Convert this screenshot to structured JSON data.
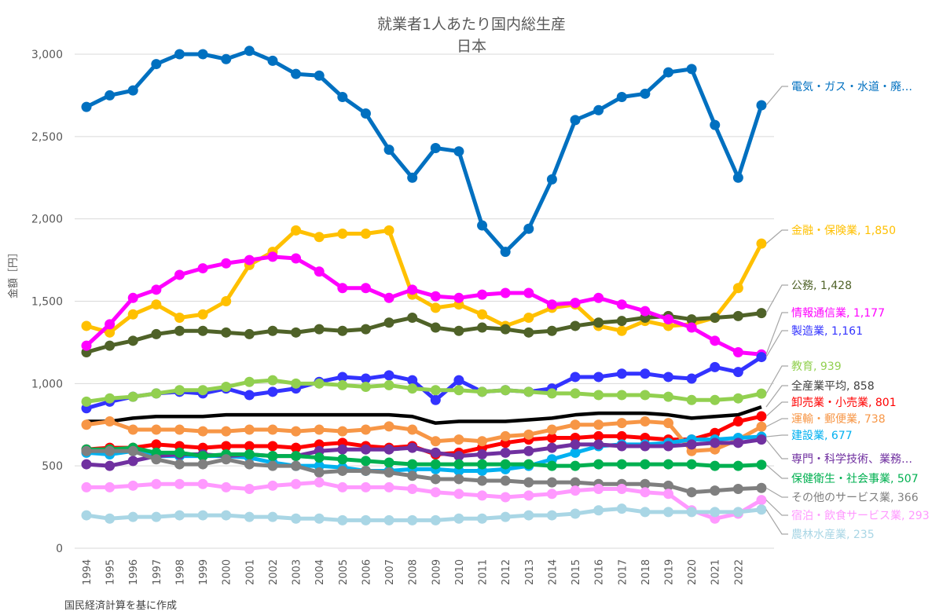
{
  "chart_data": {
    "type": "line",
    "title": "就業者1人あたり国内総生産",
    "subtitle": "日本",
    "xlabel": "",
    "ylabel": "金額［円］",
    "source_note": "国民経済計算を基に作成",
    "ylim": [
      0,
      3000
    ],
    "yticks": [
      "0",
      "500",
      "1,000",
      "1,500",
      "2,000",
      "2,500",
      "3,000"
    ],
    "ytick_values": [
      0,
      500,
      1000,
      1500,
      2000,
      2500,
      3000
    ],
    "x": [
      1994,
      1995,
      1996,
      1997,
      1998,
      1999,
      2000,
      2001,
      2002,
      2003,
      2004,
      2005,
      2006,
      2007,
      2008,
      2009,
      2010,
      2011,
      2012,
      2013,
      2014,
      2015,
      2016,
      2017,
      2018,
      2019,
      2020,
      2021,
      2022,
      2023
    ],
    "xtick_labels": [
      "1994",
      "1995",
      "1996",
      "1997",
      "1998",
      "1999",
      "2000",
      "2001",
      "2002",
      "2003",
      "2004",
      "2005",
      "2006",
      "2007",
      "2008",
      "2009",
      "2010",
      "2011",
      "2012",
      "2013",
      "2014",
      "2015",
      "2016",
      "2017",
      "2018",
      "2019",
      "2020",
      "2021",
      "2022"
    ],
    "grid": true,
    "legend": "end-of-line labels (right)",
    "series": [
      {
        "name": "電気・ガス・水道・廃棄物処理業",
        "label": "電気・ガス・水道・廃…",
        "color": "#0070c0",
        "markers": true,
        "values": [
          2680,
          2750,
          2780,
          2940,
          3000,
          3000,
          2970,
          3020,
          2960,
          2880,
          2870,
          2740,
          2640,
          2420,
          2250,
          2430,
          2410,
          1960,
          1800,
          1940,
          2240,
          2600,
          2660,
          2740,
          2760,
          2890,
          2910,
          2570,
          2250,
          2690
        ]
      },
      {
        "name": "金融・保険業",
        "label": "金融・保険業, 1,850",
        "color": "#ffc000",
        "markers": true,
        "values": [
          1350,
          1310,
          1420,
          1480,
          1400,
          1420,
          1500,
          1720,
          1800,
          1930,
          1890,
          1910,
          1910,
          1930,
          1540,
          1460,
          1480,
          1420,
          1350,
          1400,
          1460,
          1480,
          1350,
          1320,
          1380,
          1350,
          1360,
          1400,
          1580,
          1850
        ]
      },
      {
        "name": "公務",
        "label": "公務, 1,428",
        "color": "#4f6228",
        "markers": true,
        "values": [
          1190,
          1230,
          1260,
          1300,
          1320,
          1320,
          1310,
          1300,
          1320,
          1310,
          1330,
          1320,
          1330,
          1370,
          1400,
          1340,
          1320,
          1340,
          1330,
          1310,
          1320,
          1350,
          1370,
          1380,
          1400,
          1410,
          1390,
          1400,
          1410,
          1428
        ]
      },
      {
        "name": "情報通信業",
        "label": "情報通信業, 1,177",
        "color": "#ff00ff",
        "markers": true,
        "values": [
          1230,
          1360,
          1520,
          1570,
          1660,
          1700,
          1730,
          1750,
          1770,
          1760,
          1680,
          1580,
          1580,
          1520,
          1570,
          1530,
          1520,
          1540,
          1550,
          1550,
          1480,
          1490,
          1520,
          1480,
          1440,
          1390,
          1340,
          1260,
          1190,
          1177
        ]
      },
      {
        "name": "製造業",
        "label": "製造業, 1,161",
        "color": "#3333ff",
        "markers": true,
        "values": [
          850,
          890,
          920,
          940,
          950,
          940,
          970,
          930,
          950,
          970,
          1010,
          1040,
          1030,
          1050,
          1020,
          900,
          1020,
          950,
          960,
          950,
          970,
          1040,
          1040,
          1060,
          1060,
          1040,
          1030,
          1100,
          1070,
          1161
        ]
      },
      {
        "name": "教育",
        "label": "教育, 939",
        "color": "#92d050",
        "markers": true,
        "values": [
          890,
          910,
          920,
          940,
          960,
          960,
          980,
          1010,
          1020,
          1000,
          1000,
          990,
          980,
          990,
          970,
          960,
          960,
          950,
          960,
          950,
          940,
          940,
          930,
          930,
          930,
          920,
          900,
          900,
          910,
          939
        ]
      },
      {
        "name": "全産業平均",
        "label": "全産業平均, 858",
        "color": "#000000",
        "markers": false,
        "values": [
          770,
          770,
          790,
          800,
          800,
          800,
          810,
          810,
          810,
          810,
          810,
          810,
          810,
          810,
          800,
          760,
          770,
          770,
          770,
          780,
          790,
          810,
          820,
          820,
          820,
          810,
          790,
          800,
          810,
          858
        ]
      },
      {
        "name": "卸売業・小売業",
        "label": "卸売業・小売業, 801",
        "color": "#ff0000",
        "markers": true,
        "values": [
          600,
          610,
          610,
          630,
          620,
          610,
          620,
          620,
          620,
          610,
          630,
          640,
          620,
          610,
          620,
          570,
          580,
          610,
          640,
          660,
          670,
          670,
          680,
          680,
          670,
          660,
          660,
          700,
          770,
          801
        ]
      },
      {
        "name": "運輸・郵便業",
        "label": "運輸・郵便業, 738",
        "color": "#f79646",
        "markers": true,
        "values": [
          750,
          770,
          720,
          720,
          720,
          710,
          710,
          720,
          720,
          710,
          720,
          710,
          720,
          740,
          720,
          650,
          660,
          650,
          680,
          690,
          720,
          750,
          750,
          760,
          770,
          760,
          590,
          600,
          660,
          738
        ]
      },
      {
        "name": "建設業",
        "label": "建設業, 677",
        "color": "#00b0f0",
        "markers": true,
        "values": [
          580,
          570,
          590,
          560,
          560,
          560,
          560,
          550,
          520,
          500,
          500,
          490,
          470,
          470,
          480,
          480,
          470,
          470,
          480,
          500,
          540,
          580,
          620,
          630,
          630,
          640,
          660,
          660,
          670,
          677
        ]
      },
      {
        "name": "専門・科学技術、業務支援サービス業",
        "label": "専門・科学技術、業務…",
        "color": "#7030a0",
        "markers": true,
        "values": [
          510,
          500,
          530,
          560,
          570,
          570,
          560,
          570,
          560,
          560,
          590,
          600,
          600,
          600,
          610,
          580,
          560,
          570,
          580,
          590,
          610,
          630,
          630,
          620,
          620,
          620,
          630,
          640,
          640,
          660
        ]
      },
      {
        "name": "保健衛生・社会事業",
        "label": "保健衛生・社会事業, 507",
        "color": "#00b050",
        "markers": true,
        "values": [
          600,
          600,
          610,
          580,
          580,
          560,
          570,
          570,
          560,
          560,
          550,
          540,
          530,
          520,
          510,
          510,
          510,
          510,
          510,
          510,
          500,
          500,
          510,
          510,
          510,
          510,
          510,
          500,
          500,
          507
        ]
      },
      {
        "name": "その他のサービス業",
        "label": "その他のサービス業, 366",
        "color": "#7f7f7f",
        "markers": true,
        "values": [
          590,
          590,
          590,
          540,
          510,
          510,
          540,
          510,
          500,
          500,
          460,
          470,
          470,
          460,
          440,
          420,
          420,
          410,
          410,
          400,
          400,
          400,
          390,
          390,
          390,
          380,
          340,
          350,
          360,
          366
        ]
      },
      {
        "name": "宿泊・飲食サービス業",
        "label": "宿泊・飲食サービス業, 293",
        "color": "#ff99ff",
        "markers": true,
        "values": [
          370,
          370,
          380,
          390,
          390,
          390,
          370,
          360,
          380,
          390,
          400,
          370,
          370,
          370,
          360,
          340,
          330,
          320,
          310,
          320,
          330,
          350,
          360,
          360,
          340,
          330,
          230,
          180,
          210,
          293
        ]
      },
      {
        "name": "農林水産業",
        "label": "農林水産業, 235",
        "color": "#a9d6e5",
        "markers": true,
        "values": [
          200,
          180,
          190,
          190,
          200,
          200,
          200,
          190,
          190,
          180,
          180,
          170,
          170,
          170,
          170,
          170,
          180,
          180,
          190,
          200,
          200,
          210,
          230,
          240,
          220,
          220,
          220,
          220,
          220,
          235
        ]
      }
    ]
  }
}
